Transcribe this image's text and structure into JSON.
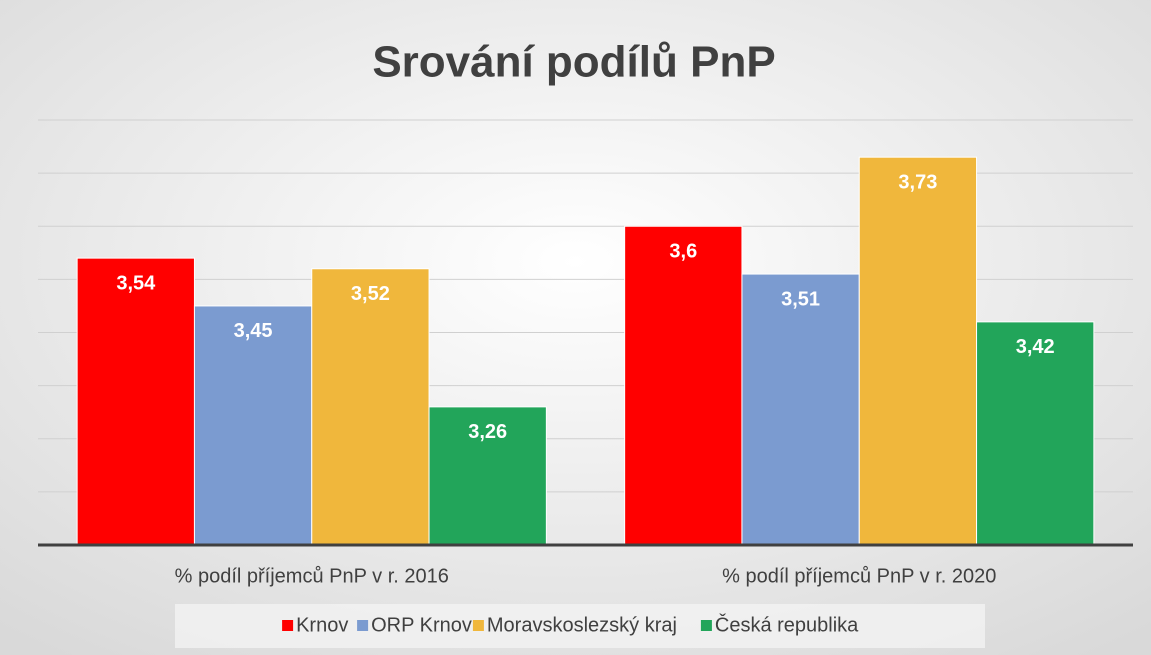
{
  "chart_data": {
    "type": "bar",
    "title": "Srování podílů PnP",
    "categories": [
      "% podíl příjemců PnP v r. 2016",
      "% podíl příjemců PnP v r. 2020"
    ],
    "series": [
      {
        "name": "Krnov",
        "color": "#ff0000",
        "values": [
          3.54,
          3.6
        ],
        "value_labels": [
          "3,54",
          "3,6"
        ]
      },
      {
        "name": "ORP Krnov",
        "color": "#7b9bd0",
        "values": [
          3.45,
          3.51
        ],
        "value_labels": [
          "3,45",
          "3,51"
        ]
      },
      {
        "name": "Moravskoslezský kraj",
        "color": "#f0b73c",
        "values": [
          3.52,
          3.73
        ],
        "value_labels": [
          "3,52",
          "3,73"
        ]
      },
      {
        "name": "Česká republika",
        "color": "#22a55a",
        "values": [
          3.26,
          3.42
        ],
        "value_labels": [
          "3,26",
          "3,42"
        ]
      }
    ],
    "ylim": [
      3.0,
      3.8
    ],
    "yticks": [
      3.0,
      3.1,
      3.2,
      3.3,
      3.4,
      3.5,
      3.6,
      3.7,
      3.8
    ],
    "grid": true,
    "legend": "bottom"
  }
}
